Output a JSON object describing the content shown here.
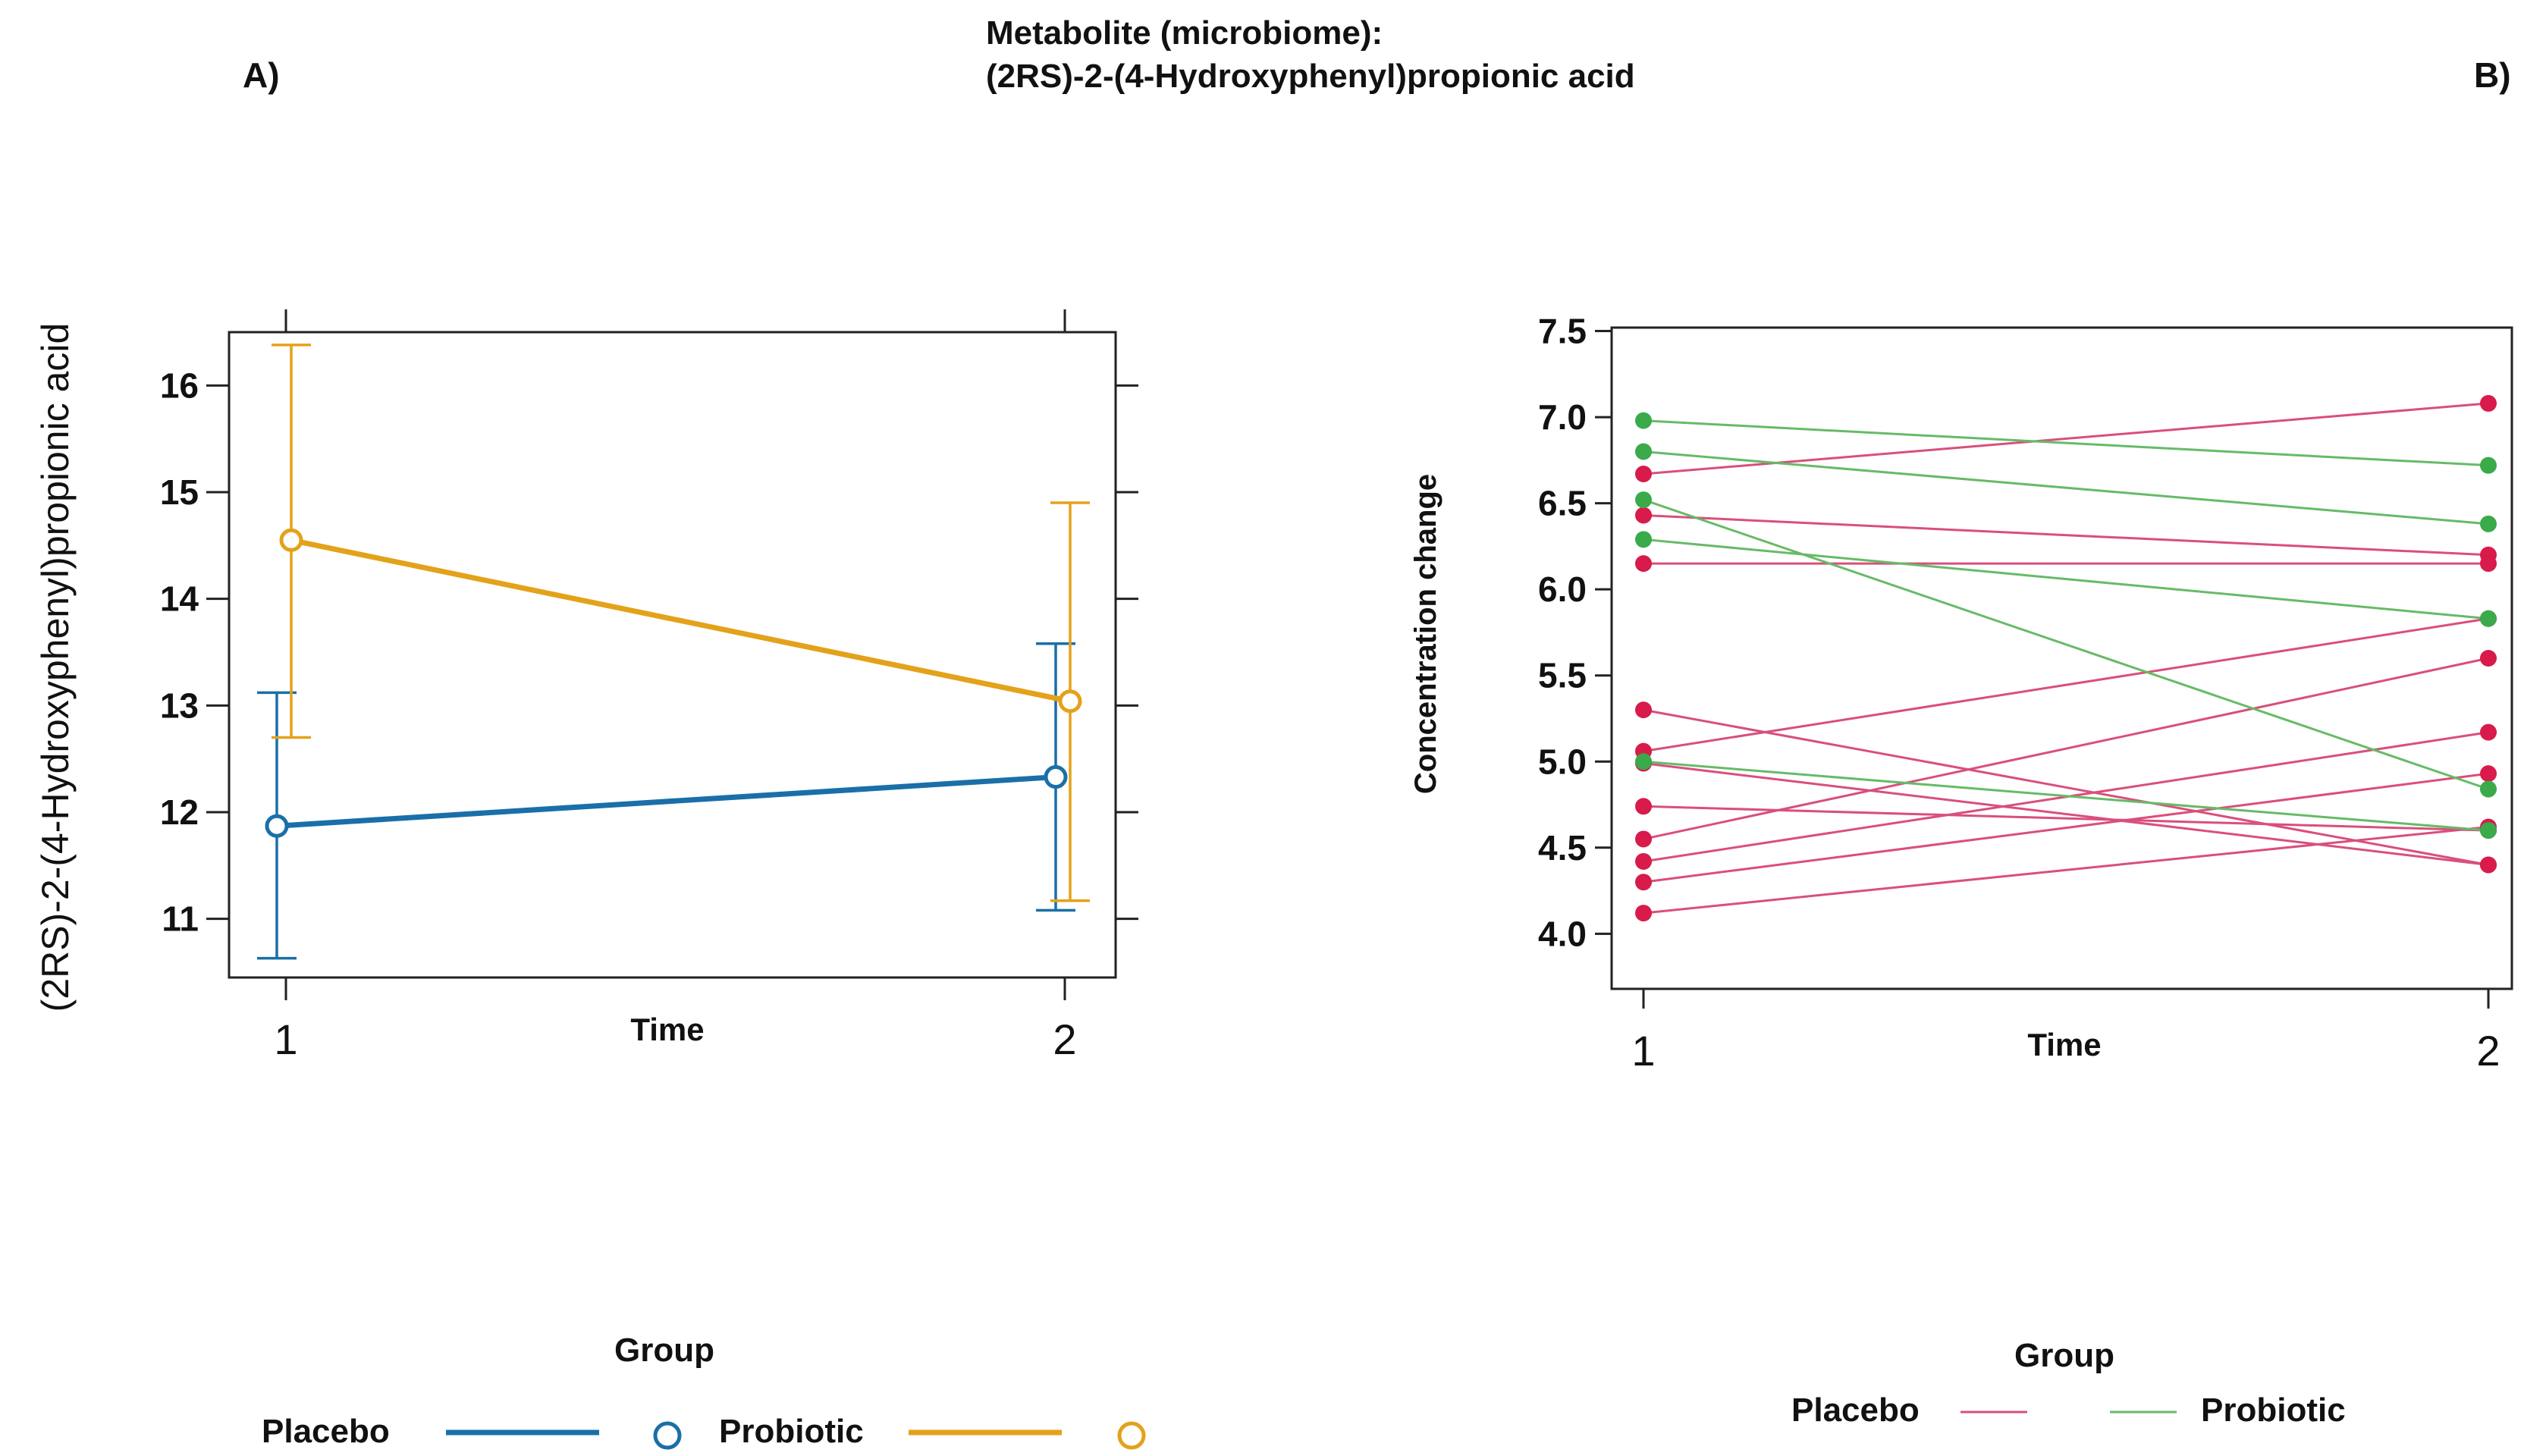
{
  "figure": {
    "title_line1": "Metabolite (microbiome):",
    "title_line2": "(2RS)-2-(4-Hydroxyphenyl)propionic acid",
    "panel_a_label": "A)",
    "panel_b_label": "B)"
  },
  "chart_data": [
    {
      "panel": "A",
      "type": "line",
      "xlabel": "Time",
      "ylabel": "(2RS)-2-(4-Hydroxyphenyl)propionic acid",
      "x": [
        1,
        2
      ],
      "x_tick_labels": [
        "1",
        "2"
      ],
      "y_ticks": [
        11,
        12,
        13,
        14,
        15,
        16
      ],
      "y_tick_labels": [
        "11",
        "12",
        "13",
        "14",
        "15",
        "16"
      ],
      "ylim": [
        10.45,
        16.5
      ],
      "legend_title": "Group",
      "legend_position": "bottom",
      "series": [
        {
          "name": "Placebo",
          "color": "#1a6fa8",
          "values": [
            11.87,
            12.33
          ],
          "ci_low": [
            10.63,
            11.08
          ],
          "ci_high": [
            13.12,
            13.58
          ]
        },
        {
          "name": "Probiotic",
          "color": "#e3a21a",
          "values": [
            14.55,
            13.04
          ],
          "ci_low": [
            12.7,
            11.17
          ],
          "ci_high": [
            16.38,
            14.9
          ]
        }
      ]
    },
    {
      "panel": "B",
      "type": "line",
      "xlabel": "Time",
      "ylabel": "Concentration change",
      "x": [
        1,
        2
      ],
      "x_tick_labels": [
        "1",
        "2"
      ],
      "y_ticks": [
        4.0,
        4.5,
        5.0,
        5.5,
        6.0,
        6.5,
        7.0,
        7.5
      ],
      "y_tick_labels": [
        "4.0",
        "4.5",
        "5.0",
        "5.5",
        "6.0",
        "6.5",
        "7.0",
        "7.5"
      ],
      "ylim": [
        3.68,
        7.52
      ],
      "legend_title": "Group",
      "legend_position": "bottom",
      "groups": [
        {
          "name": "Placebo",
          "line_color": "#d94f7b",
          "point_color": "#d81b4a"
        },
        {
          "name": "Probiotic",
          "line_color": "#66bb66",
          "point_color": "#3aaa4a"
        }
      ],
      "subjects": [
        {
          "group": "Placebo",
          "values": [
            6.67,
            7.08
          ]
        },
        {
          "group": "Placebo",
          "values": [
            6.43,
            6.2
          ]
        },
        {
          "group": "Placebo",
          "values": [
            6.15,
            6.15
          ]
        },
        {
          "group": "Placebo",
          "values": [
            5.3,
            4.4
          ]
        },
        {
          "group": "Placebo",
          "values": [
            5.06,
            5.83
          ]
        },
        {
          "group": "Placebo",
          "values": [
            4.99,
            4.4
          ]
        },
        {
          "group": "Placebo",
          "values": [
            4.74,
            4.6
          ]
        },
        {
          "group": "Placebo",
          "values": [
            4.55,
            5.6
          ]
        },
        {
          "group": "Placebo",
          "values": [
            4.42,
            5.17
          ]
        },
        {
          "group": "Placebo",
          "values": [
            4.3,
            4.93
          ]
        },
        {
          "group": "Placebo",
          "values": [
            4.12,
            4.62
          ]
        },
        {
          "group": "Probiotic",
          "values": [
            6.98,
            6.72
          ]
        },
        {
          "group": "Probiotic",
          "values": [
            6.8,
            6.38
          ]
        },
        {
          "group": "Probiotic",
          "values": [
            6.52,
            4.84
          ]
        },
        {
          "group": "Probiotic",
          "values": [
            6.29,
            5.83
          ]
        },
        {
          "group": "Probiotic",
          "values": [
            5.0,
            4.6
          ]
        }
      ]
    }
  ]
}
